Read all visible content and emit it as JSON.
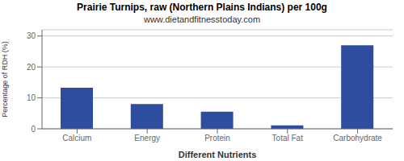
{
  "chart_data": {
    "type": "bar",
    "title": "Prairie Turnips, raw (Northern Plains Indians) per 100g",
    "subtitle": "www.dietandfitnesstoday.com",
    "categories": [
      "Calcium",
      "Energy",
      "Protein",
      "Total Fat",
      "Carbohydrate"
    ],
    "values": [
      13.3,
      8.0,
      5.5,
      1.1,
      27.0
    ],
    "color": "#2e4d9e",
    "xlabel": "Different Nutrients",
    "ylabel": "Percentage of RDH (%)",
    "ylim": [
      0,
      32
    ],
    "yticks": [
      0,
      10,
      20,
      30
    ],
    "grid": true
  }
}
